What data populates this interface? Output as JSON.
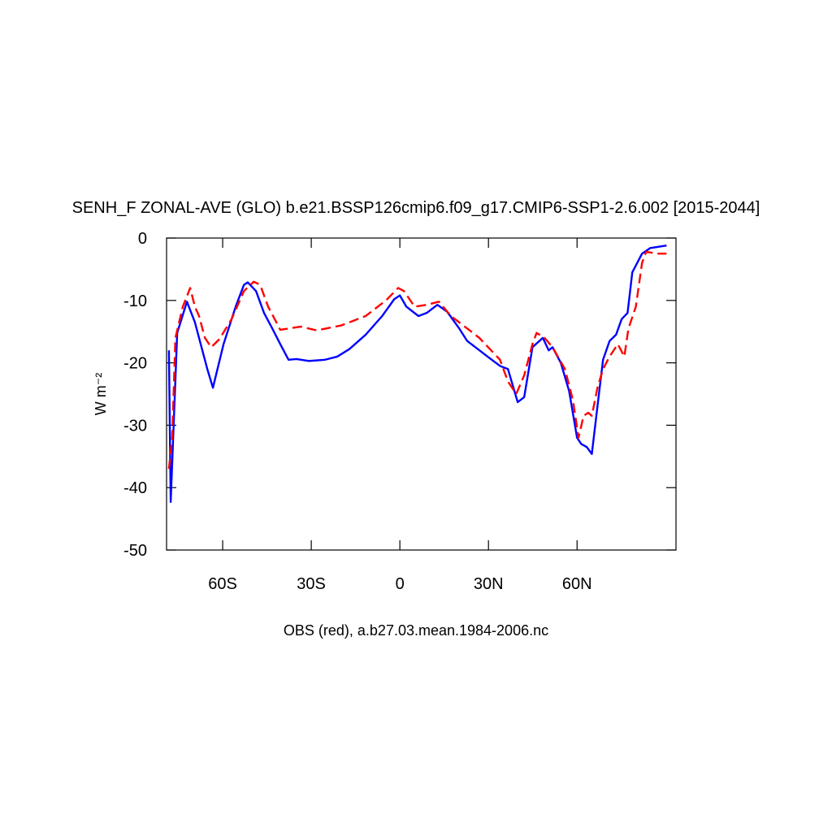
{
  "chart_data": {
    "type": "line",
    "title": "SENH_F ZONAL-AVE (GLO) b.e21.BSSP126cmip6.f09_g17.CMIP6-SSP1-2.6.002 [2015-2044]",
    "ylabel": "W m⁻²",
    "xlabel": "OBS (red), a.b27.03.mean.1984-2006.nc",
    "xlim": [
      -79,
      93.5
    ],
    "ylim": [
      -50,
      0
    ],
    "xticks": [
      {
        "value": -60,
        "label": "60S"
      },
      {
        "value": -30,
        "label": "30S"
      },
      0,
      {
        "value": 30,
        "label": "30N"
      },
      {
        "value": 60,
        "label": "60N"
      }
    ],
    "yticks": [
      0,
      -10,
      -20,
      -30,
      -40,
      -50
    ],
    "series": [
      {
        "color": "#0000ff",
        "dash": false,
        "x": [
          -78.2,
          -77.6,
          -75.4,
          -72.1,
          -69.4,
          -65.2,
          -63.3,
          -59.7,
          -55.6,
          -52.8,
          -51.5,
          -48.7,
          -46,
          -43.2,
          -40.5,
          -37.7,
          -35,
          -30.8,
          -25.3,
          -21.2,
          -17.1,
          -11.6,
          -6,
          -1.9,
          0,
          2.2,
          6.3,
          9.1,
          12.7,
          16,
          20.1,
          22.8,
          25.6,
          29.7,
          33.9,
          36.6,
          39.9,
          42.1,
          44.9,
          48.4,
          50.4,
          51.7,
          54.5,
          57.3,
          60,
          61.4,
          63.3,
          65,
          66.9,
          68.8,
          71,
          73.2,
          75.1,
          77.1,
          78.7,
          82,
          84.8,
          90.3
        ],
        "values": [
          -18,
          -42.3,
          -15.2,
          -10.2,
          -13.5,
          -21,
          -24,
          -17,
          -11,
          -7.5,
          -7.1,
          -8.5,
          -12,
          -14.5,
          -17,
          -19.5,
          -19.4,
          -19.7,
          -19.5,
          -19,
          -17.8,
          -15.5,
          -12.5,
          -9.8,
          -9.2,
          -11,
          -12.5,
          -12,
          -10.7,
          -11.8,
          -14.5,
          -16.5,
          -17.5,
          -19,
          -20.5,
          -21,
          -26.3,
          -25.5,
          -17.5,
          -16,
          -18,
          -17.5,
          -20,
          -24.5,
          -32,
          -33,
          -33.5,
          -34.6,
          -27,
          -19.5,
          -16.5,
          -15.5,
          -13,
          -12,
          -5.5,
          -2.5,
          -1.6,
          -1.2
        ]
      },
      {
        "color": "#ff0000",
        "dash": true,
        "x": [
          -78.2,
          -77.1,
          -76,
          -73.5,
          -71,
          -69.4,
          -68,
          -66,
          -63.9,
          -61.1,
          -57,
          -52.8,
          -49.5,
          -47.3,
          -44.6,
          -40.5,
          -33.6,
          -28.1,
          -19.8,
          -11.6,
          -4.7,
          -0.6,
          1.4,
          5,
          9.1,
          13.2,
          17.3,
          22.8,
          26.9,
          33.9,
          36.6,
          39.4,
          42.1,
          44.9,
          46.3,
          49,
          51.7,
          55.9,
          58.6,
          60.5,
          62.2,
          63.8,
          65,
          66.9,
          68.8,
          71,
          73.8,
          76,
          77.4,
          79.9,
          82,
          83.4,
          87.5,
          90.3
        ],
        "values": [
          -37,
          -32,
          -16,
          -11,
          -8,
          -11,
          -12.5,
          -16,
          -17.5,
          -16.2,
          -13,
          -8.5,
          -7,
          -7.5,
          -11,
          -14.7,
          -14.2,
          -14.8,
          -14,
          -12.5,
          -10,
          -8,
          -8.5,
          -11,
          -10.7,
          -10.2,
          -12.5,
          -14.5,
          -16,
          -19.5,
          -23,
          -25,
          -22,
          -17,
          -15.2,
          -16,
          -17.5,
          -21,
          -26,
          -32,
          -28.5,
          -28,
          -28.5,
          -24,
          -21,
          -19,
          -17,
          -19,
          -14.5,
          -11,
          -4,
          -2.2,
          -2.5,
          -2.5
        ]
      }
    ]
  }
}
